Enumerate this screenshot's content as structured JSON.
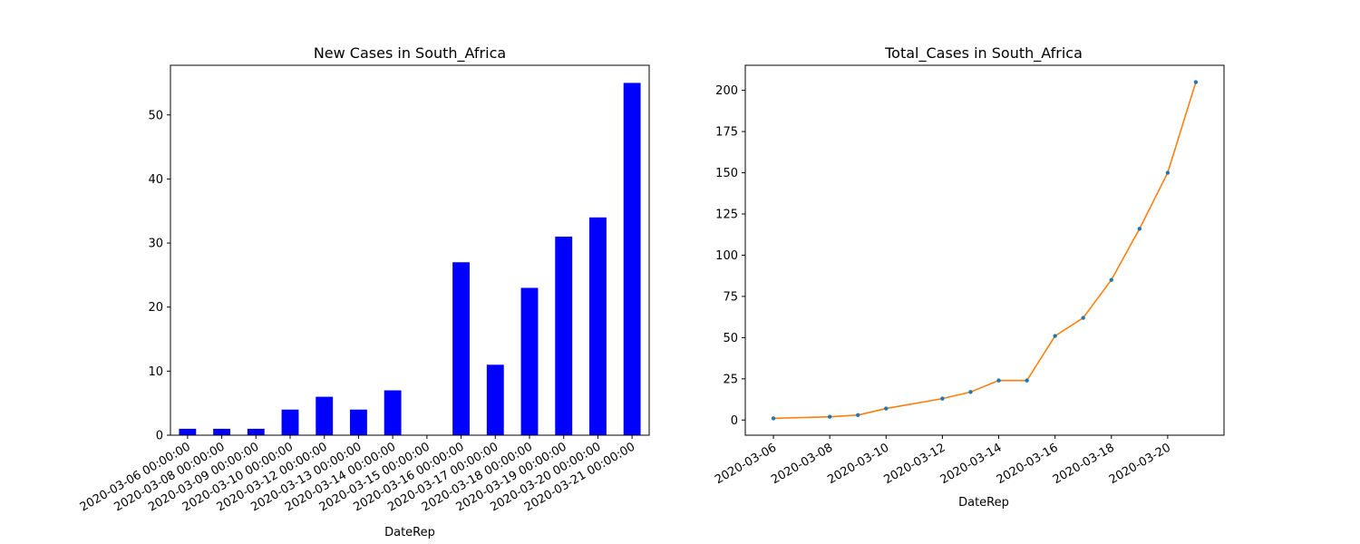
{
  "colors": {
    "bar": "#0000ff",
    "line": "#ff7f0e",
    "marker": "#1f77b4",
    "axis": "#000000"
  },
  "chart_data": [
    {
      "type": "bar",
      "title": "New Cases in South_Africa",
      "xlabel": "DateRep",
      "ylabel": "",
      "ylim": [
        0,
        57.75
      ],
      "yticks": [
        0,
        10,
        20,
        30,
        40,
        50
      ],
      "grid": false,
      "categories": [
        "2020-03-06 00:00:00",
        "2020-03-08 00:00:00",
        "2020-03-09 00:00:00",
        "2020-03-10 00:00:00",
        "2020-03-12 00:00:00",
        "2020-03-13 00:00:00",
        "2020-03-14 00:00:00",
        "2020-03-15 00:00:00",
        "2020-03-16 00:00:00",
        "2020-03-17 00:00:00",
        "2020-03-18 00:00:00",
        "2020-03-19 00:00:00",
        "2020-03-20 00:00:00",
        "2020-03-21 00:00:00"
      ],
      "values": [
        1,
        1,
        1,
        4,
        6,
        4,
        7,
        0,
        27,
        11,
        23,
        31,
        34,
        55
      ]
    },
    {
      "type": "line",
      "title": "Total_Cases in South_Africa",
      "xlabel": "DateRep",
      "ylabel": "",
      "xlim": [
        "2020-03-05",
        "2020-03-22"
      ],
      "ylim": [
        -9.2,
        215.2
      ],
      "yticks": [
        0,
        25,
        50,
        75,
        100,
        125,
        150,
        175,
        200
      ],
      "xticks": [
        "2020-03-06",
        "2020-03-08",
        "2020-03-10",
        "2020-03-12",
        "2020-03-14",
        "2020-03-16",
        "2020-03-18",
        "2020-03-20"
      ],
      "grid": false,
      "x": [
        "2020-03-06",
        "2020-03-08",
        "2020-03-09",
        "2020-03-10",
        "2020-03-12",
        "2020-03-13",
        "2020-03-14",
        "2020-03-15",
        "2020-03-16",
        "2020-03-17",
        "2020-03-18",
        "2020-03-19",
        "2020-03-20",
        "2020-03-21"
      ],
      "y": [
        1,
        2,
        3,
        7,
        13,
        17,
        24,
        24,
        51,
        62,
        85,
        116,
        150,
        205
      ]
    }
  ]
}
